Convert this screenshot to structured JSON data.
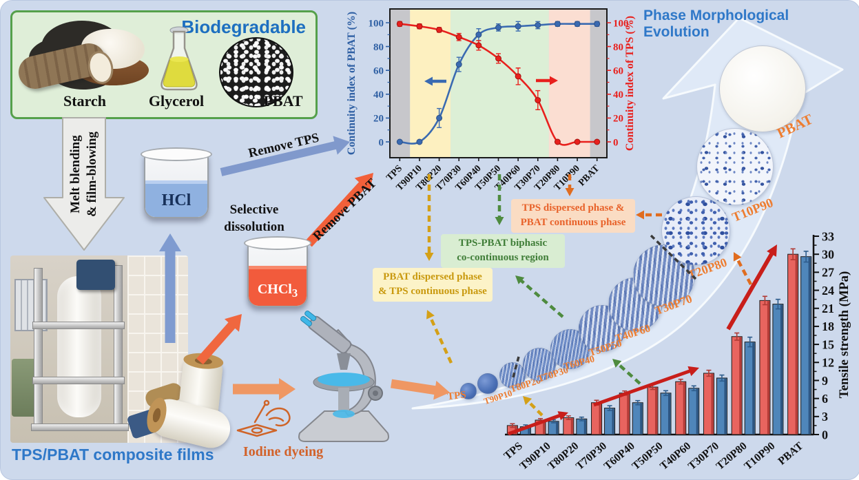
{
  "figure": {
    "background": "#cdd9ec"
  },
  "biodegradable_box": {
    "title": "Biodegradable",
    "items": [
      {
        "label": "Starch"
      },
      {
        "label": "Glycerol"
      },
      {
        "label": "PBAT"
      }
    ]
  },
  "process": {
    "melt_arrow_line1": "Melt blending",
    "melt_arrow_line2": "& film-blowing",
    "film_label": "TPS/PBAT composite films",
    "hcl_label": "HCl",
    "chcl3_label": "CHCl",
    "chcl3_subscript": "3",
    "selective_line1": "Selective",
    "selective_line2": "dissolution",
    "remove_tps": "Remove TPS",
    "remove_pbat": "Remove PBAT",
    "iodine_label": "Iodine dyeing"
  },
  "evolution": {
    "title": "Phase Morphological Evolution",
    "label_color": "#ed7d31",
    "phases": [
      "TPS",
      "T90P10",
      "T80P20",
      "T70P30",
      "T60P40",
      "T50P50",
      "T40P60",
      "T30P70",
      "T20P80",
      "T10P90",
      "PBAT"
    ]
  },
  "annotations": {
    "yellow_box": {
      "line1": "PBAT dispersed phase",
      "line2": "& TPS continuous phase"
    },
    "green_box": {
      "line1": "TPS-PBAT biphasic",
      "line2": "co-continuous region"
    },
    "orange_box": {
      "line1": "TPS dispersed phase &",
      "line2": "PBAT continuous phase"
    }
  },
  "chart_data": [
    {
      "type": "line",
      "categories": [
        "TPS",
        "T90P10",
        "T80P20",
        "T70P30",
        "T60P40",
        "T50P50",
        "T40P60",
        "T30P70",
        "T20P80",
        "T10P90",
        "PBAT"
      ],
      "series": [
        {
          "axis": "left",
          "color": "#3a6ab1",
          "point_stroke": "#2c4f86",
          "values": [
            0,
            0,
            20,
            65,
            90,
            96,
            97,
            98,
            99,
            99,
            99
          ],
          "errors": [
            1,
            1,
            8,
            6,
            5,
            3,
            4,
            3,
            2,
            2,
            2
          ]
        },
        {
          "axis": "right",
          "color": "#e8201d",
          "point_stroke": "#a11310",
          "values": [
            99,
            97,
            94,
            88,
            81,
            70,
            55,
            35,
            0,
            0,
            0
          ],
          "errors": [
            2,
            2,
            2,
            3,
            4,
            4,
            7,
            8,
            1,
            1,
            1
          ]
        }
      ],
      "ylabel_left": "Continuity index of PBAT (%)",
      "ylabel_right": "Continuity index of TPS (%)",
      "ylim": [
        0,
        100
      ],
      "yticks": [
        0,
        20,
        40,
        60,
        80,
        100
      ],
      "region_shading": [
        {
          "color": "#c7c7cb",
          "from": -0.5,
          "to": 0.52
        },
        {
          "color": "#fdf0c0",
          "from": 0.52,
          "to": 2.58
        },
        {
          "color": "#dcefd6",
          "from": 2.58,
          "to": 7.56
        },
        {
          "color": "#fbded2",
          "from": 7.56,
          "to": 9.65
        },
        {
          "color": "#c7c7cb",
          "from": 9.65,
          "to": 10.5
        }
      ],
      "legend": "none",
      "grid": "off"
    },
    {
      "type": "bar",
      "categories": [
        "TPS",
        "T90P10",
        "T80P20",
        "T70P30",
        "T60P40",
        "T50P50",
        "T40P60",
        "T30P70",
        "T20P80",
        "T10P90",
        "PBAT"
      ],
      "series": [
        {
          "color": "#e8645f",
          "edge": "#8f1f1c",
          "error_color": "#b03a34",
          "values": [
            1.5,
            2.4,
            2.8,
            5.3,
            6.9,
            7.9,
            8.8,
            10.2,
            16.3,
            22.3,
            30
          ],
          "errors": [
            0.3,
            0.25,
            0.3,
            0.4,
            0.35,
            0.4,
            0.4,
            0.5,
            0.6,
            0.7,
            0.9
          ]
        },
        {
          "color": "#4f86ba",
          "edge": "#17355c",
          "error_color": "#2e5d8c",
          "values": [
            1.3,
            2.2,
            2.6,
            4.4,
            5.3,
            6.9,
            7.7,
            9.4,
            15.4,
            21.7,
            29.6
          ],
          "errors": [
            0.3,
            0.25,
            0.3,
            0.4,
            0.35,
            0.4,
            0.4,
            0.5,
            0.8,
            0.8,
            0.9
          ]
        }
      ],
      "ylabel": "Tensile strength (MPa)",
      "ylim": [
        0,
        33
      ],
      "ytick_step": 3,
      "legend": "none",
      "grid": "off"
    }
  ]
}
